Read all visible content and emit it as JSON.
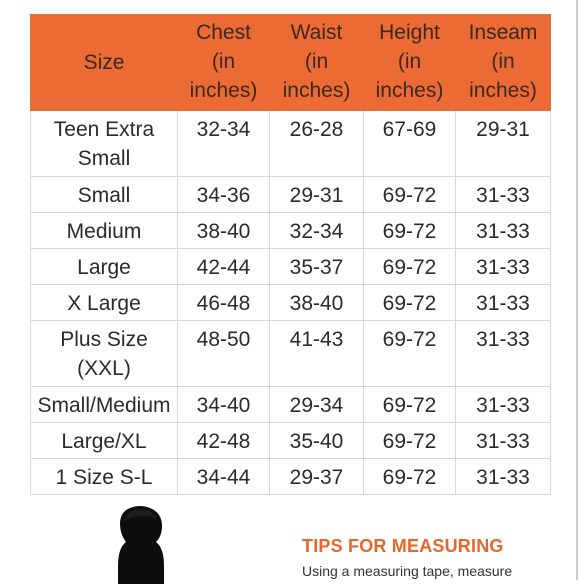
{
  "table": {
    "headers": {
      "size": "Size",
      "chest": [
        "Chest",
        "(in",
        "inches)"
      ],
      "waist": [
        "Waist",
        "(in",
        "inches)"
      ],
      "height": [
        "Height",
        "(in",
        "inches)"
      ],
      "inseam": [
        "Inseam",
        "(in",
        "inches)"
      ]
    },
    "rows": [
      {
        "size": [
          "Teen Extra",
          "Small"
        ],
        "chest": "32-34",
        "waist": "26-28",
        "height": "67-69",
        "inseam": "29-31"
      },
      {
        "size": [
          "Small"
        ],
        "chest": "34-36",
        "waist": "29-31",
        "height": "69-72",
        "inseam": "31-33"
      },
      {
        "size": [
          "Medium"
        ],
        "chest": "38-40",
        "waist": "32-34",
        "height": "69-72",
        "inseam": "31-33"
      },
      {
        "size": [
          "Large"
        ],
        "chest": "42-44",
        "waist": "35-37",
        "height": "69-72",
        "inseam": "31-33"
      },
      {
        "size": [
          "X Large"
        ],
        "chest": "46-48",
        "waist": "38-40",
        "height": "69-72",
        "inseam": "31-33"
      },
      {
        "size": [
          "Plus Size",
          "(XXL)"
        ],
        "chest": "48-50",
        "waist": "41-43",
        "height": "69-72",
        "inseam": "31-33"
      },
      {
        "size": [
          "Small/Medium"
        ],
        "chest": "34-40",
        "waist": "29-34",
        "height": "69-72",
        "inseam": "31-33"
      },
      {
        "size": [
          "Large/XL"
        ],
        "chest": "42-48",
        "waist": "35-40",
        "height": "69-72",
        "inseam": "31-33"
      },
      {
        "size": [
          "1 Size S-L"
        ],
        "chest": "34-44",
        "waist": "29-37",
        "height": "69-72",
        "inseam": "31-33"
      }
    ]
  },
  "tips": {
    "title": "TIPS FOR MEASURING",
    "text": "Using a measuring tape, measure"
  },
  "colors": {
    "header_bg": "#ec6a34",
    "tips_title": "#e8652c"
  },
  "icons": {
    "silhouette": "person-silhouette-icon"
  }
}
